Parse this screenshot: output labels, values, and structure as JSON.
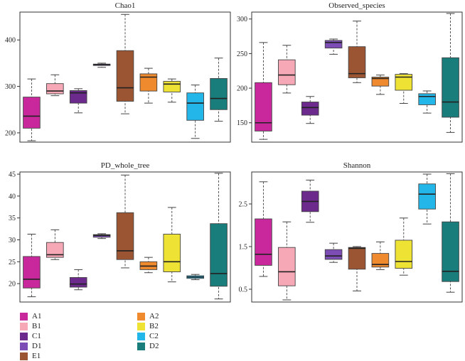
{
  "groups": [
    "A1",
    "B1",
    "C1",
    "D1",
    "E1",
    "A2",
    "B2",
    "C2",
    "D2"
  ],
  "colors": {
    "A1": "#c8289b",
    "B1": "#f6a8b6",
    "C1": "#6b2a8c",
    "D1": "#7c4db4",
    "E1": "#9c5532",
    "A2": "#ef8a2e",
    "B2": "#eee335",
    "C2": "#23b6e8",
    "D2": "#187d7b"
  },
  "legend": {
    "column1": [
      "A1",
      "B1",
      "C1",
      "D1",
      "E1"
    ],
    "column2": [
      "A2",
      "B2",
      "C2",
      "D2"
    ]
  },
  "chart_data": [
    {
      "type": "box",
      "title": "Chao1",
      "ylim": [
        180,
        460
      ],
      "yticks": [
        200,
        300,
        400
      ],
      "boxes": [
        {
          "group": "A1",
          "min": 183,
          "q1": 210,
          "median": 236,
          "q3": 277,
          "max": 316
        },
        {
          "group": "B1",
          "min": 280,
          "q1": 284,
          "median": 290,
          "q3": 306,
          "max": 325
        },
        {
          "group": "C1",
          "min": 243,
          "q1": 264,
          "median": 286,
          "q3": 291,
          "max": 295
        },
        {
          "group": "D1",
          "min": 341,
          "q1": 345,
          "median": 347,
          "q3": 348,
          "max": 350
        },
        {
          "group": "E1",
          "min": 241,
          "q1": 268,
          "median": 297,
          "q3": 377,
          "max": 455
        },
        {
          "group": "A2",
          "min": 264,
          "q1": 290,
          "median": 320,
          "q3": 327,
          "max": 339
        },
        {
          "group": "B2",
          "min": 266,
          "q1": 288,
          "median": 305,
          "q3": 311,
          "max": 316
        },
        {
          "group": "C2",
          "min": 188,
          "q1": 227,
          "median": 264,
          "q3": 286,
          "max": 303
        },
        {
          "group": "D2",
          "min": 225,
          "q1": 250,
          "median": 274,
          "q3": 317,
          "max": 361
        }
      ]
    },
    {
      "type": "box",
      "title": "Observed_species",
      "ylim": [
        122,
        310
      ],
      "yticks": [
        150,
        200,
        250,
        300
      ],
      "boxes": [
        {
          "group": "A1",
          "min": 126,
          "q1": 138,
          "median": 150,
          "q3": 208,
          "max": 266
        },
        {
          "group": "B1",
          "min": 193,
          "q1": 205,
          "median": 219,
          "q3": 241,
          "max": 262
        },
        {
          "group": "C1",
          "min": 149,
          "q1": 161,
          "median": 172,
          "q3": 180,
          "max": 188
        },
        {
          "group": "D1",
          "min": 249,
          "q1": 258,
          "median": 266,
          "q3": 269,
          "max": 271
        },
        {
          "group": "E1",
          "min": 208,
          "q1": 215,
          "median": 221,
          "q3": 260,
          "max": 297
        },
        {
          "group": "A2",
          "min": 191,
          "q1": 203,
          "median": 214,
          "q3": 216,
          "max": 219
        },
        {
          "group": "B2",
          "min": 178,
          "q1": 197,
          "median": 216,
          "q3": 220,
          "max": 221
        },
        {
          "group": "C2",
          "min": 164,
          "q1": 176,
          "median": 188,
          "q3": 192,
          "max": 196
        },
        {
          "group": "D2",
          "min": 136,
          "q1": 158,
          "median": 180,
          "q3": 244,
          "max": 308
        }
      ]
    },
    {
      "type": "box",
      "title": "PD_whole_tree",
      "ylim": [
        15.8,
        45.5
      ],
      "yticks": [
        20,
        25,
        30,
        35,
        40,
        45
      ],
      "boxes": [
        {
          "group": "A1",
          "min": 17.0,
          "q1": 19.0,
          "median": 21.0,
          "q3": 26.2,
          "max": 31.3
        },
        {
          "group": "B1",
          "min": 25.5,
          "q1": 26.0,
          "median": 26.6,
          "q3": 29.4,
          "max": 32.3
        },
        {
          "group": "C1",
          "min": 18.6,
          "q1": 19.2,
          "median": 19.9,
          "q3": 21.4,
          "max": 23.2
        },
        {
          "group": "D1",
          "min": 30.3,
          "q1": 30.6,
          "median": 31.0,
          "q3": 31.2,
          "max": 31.4
        },
        {
          "group": "E1",
          "min": 23.6,
          "q1": 25.5,
          "median": 27.5,
          "q3": 36.2,
          "max": 44.8
        },
        {
          "group": "A2",
          "min": 22.5,
          "q1": 23.2,
          "median": 24.0,
          "q3": 25.0,
          "max": 26.0
        },
        {
          "group": "B2",
          "min": 20.4,
          "q1": 22.7,
          "median": 25.0,
          "q3": 31.3,
          "max": 37.4
        },
        {
          "group": "C2",
          "min": 20.9,
          "q1": 21.2,
          "median": 21.5,
          "q3": 21.8,
          "max": 22.1
        },
        {
          "group": "D2",
          "min": 16.5,
          "q1": 19.4,
          "median": 22.3,
          "q3": 33.7,
          "max": 45.2
        }
      ]
    },
    {
      "type": "box",
      "title": "Shannon",
      "ylim": [
        0.2,
        3.25
      ],
      "yticks": [
        0.5,
        1.5,
        2.5
      ],
      "ytick_labels": [
        "0.5",
        "1.5",
        "2.5"
      ],
      "boxes": [
        {
          "group": "A1",
          "min": 0.8,
          "q1": 1.06,
          "median": 1.32,
          "q3": 2.15,
          "max": 3.02
        },
        {
          "group": "B1",
          "min": 0.25,
          "q1": 0.58,
          "median": 0.91,
          "q3": 1.48,
          "max": 2.08
        },
        {
          "group": "C1",
          "min": 2.07,
          "q1": 2.32,
          "median": 2.56,
          "q3": 2.8,
          "max": 3.06
        },
        {
          "group": "D1",
          "min": 1.13,
          "q1": 1.2,
          "median": 1.28,
          "q3": 1.43,
          "max": 1.58
        },
        {
          "group": "E1",
          "min": 0.46,
          "q1": 0.97,
          "median": 1.46,
          "q3": 1.48,
          "max": 1.5
        },
        {
          "group": "A2",
          "min": 0.96,
          "q1": 1.02,
          "median": 1.08,
          "q3": 1.34,
          "max": 1.61
        },
        {
          "group": "B2",
          "min": 0.83,
          "q1": 0.99,
          "median": 1.15,
          "q3": 1.65,
          "max": 2.17
        },
        {
          "group": "C2",
          "min": 2.03,
          "q1": 2.38,
          "median": 2.73,
          "q3": 2.97,
          "max": 3.2
        },
        {
          "group": "D2",
          "min": 0.43,
          "q1": 0.68,
          "median": 0.92,
          "q3": 2.08,
          "max": 3.21
        }
      ]
    }
  ]
}
